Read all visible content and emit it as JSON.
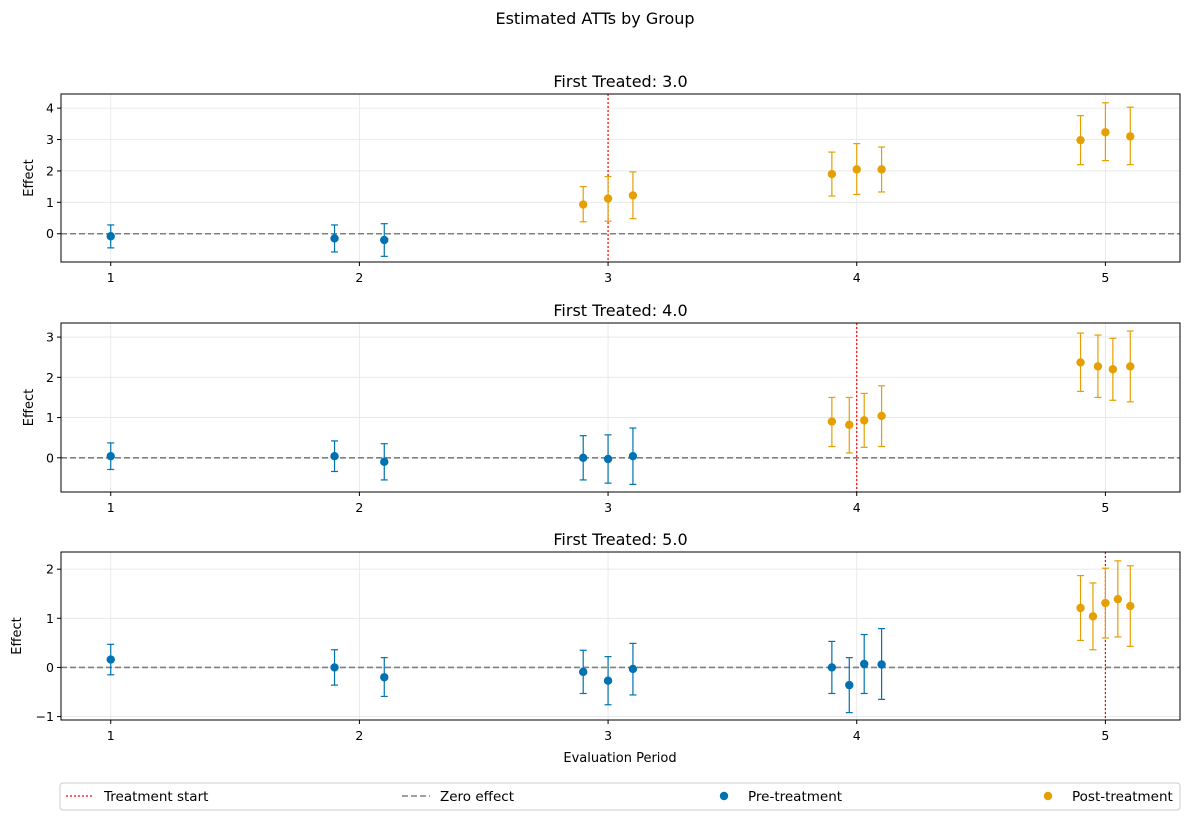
{
  "figure": {
    "suptitle": "Estimated ATTs by Group",
    "xlabel": "Evaluation Period"
  },
  "colors": {
    "pre": "#0072B2",
    "post": "#E69F00",
    "treatment_line": "#ff0000",
    "zero_line": "#808080",
    "grid": "#e6e6e6"
  },
  "legend": {
    "placement": "bottom",
    "items": [
      {
        "label": "Treatment start",
        "kind": "treatment-line"
      },
      {
        "label": "Zero effect",
        "kind": "zero-line"
      },
      {
        "label": "Pre-treatment",
        "kind": "pre-marker"
      },
      {
        "label": "Post-treatment",
        "kind": "post-marker"
      }
    ]
  },
  "chart_data": [
    {
      "type": "scatter",
      "title": "First Treated: 3.0",
      "ylabel": "Effect",
      "xlabel": "",
      "xlim": [
        0.8,
        5.3
      ],
      "ylim": [
        -0.9,
        4.45
      ],
      "xticks": [
        1,
        2,
        3,
        4,
        5
      ],
      "yticks": [
        0,
        1,
        2,
        3,
        4
      ],
      "grid": true,
      "treatment_start": 3,
      "points": [
        {
          "x": 1.0,
          "y": -0.08,
          "lo": -0.45,
          "hi": 0.28,
          "phase": "pre"
        },
        {
          "x": 1.9,
          "y": -0.15,
          "lo": -0.58,
          "hi": 0.28,
          "phase": "pre"
        },
        {
          "x": 2.1,
          "y": -0.2,
          "lo": -0.72,
          "hi": 0.32,
          "phase": "pre"
        },
        {
          "x": 2.9,
          "y": 0.93,
          "lo": 0.38,
          "hi": 1.5,
          "phase": "post"
        },
        {
          "x": 3.0,
          "y": 1.12,
          "lo": 0.4,
          "hi": 1.82,
          "phase": "post"
        },
        {
          "x": 3.1,
          "y": 1.22,
          "lo": 0.48,
          "hi": 1.97,
          "phase": "post"
        },
        {
          "x": 3.9,
          "y": 1.9,
          "lo": 1.2,
          "hi": 2.6,
          "phase": "post"
        },
        {
          "x": 4.0,
          "y": 2.05,
          "lo": 1.25,
          "hi": 2.87,
          "phase": "post"
        },
        {
          "x": 4.1,
          "y": 2.05,
          "lo": 1.33,
          "hi": 2.76,
          "phase": "post"
        },
        {
          "x": 4.9,
          "y": 2.98,
          "lo": 2.2,
          "hi": 3.76,
          "phase": "post"
        },
        {
          "x": 5.0,
          "y": 3.23,
          "lo": 2.33,
          "hi": 4.17,
          "phase": "post"
        },
        {
          "x": 5.1,
          "y": 3.1,
          "lo": 2.2,
          "hi": 4.03,
          "phase": "post"
        }
      ]
    },
    {
      "type": "scatter",
      "title": "First Treated: 4.0",
      "ylabel": "Effect",
      "xlabel": "",
      "xlim": [
        0.8,
        5.3
      ],
      "ylim": [
        -0.85,
        3.35
      ],
      "xticks": [
        1,
        2,
        3,
        4,
        5
      ],
      "yticks": [
        0,
        1,
        2,
        3
      ],
      "grid": true,
      "treatment_start": 4,
      "points": [
        {
          "x": 1.0,
          "y": 0.04,
          "lo": -0.29,
          "hi": 0.37,
          "phase": "pre"
        },
        {
          "x": 1.9,
          "y": 0.04,
          "lo": -0.34,
          "hi": 0.42,
          "phase": "pre"
        },
        {
          "x": 2.1,
          "y": -0.1,
          "lo": -0.55,
          "hi": 0.35,
          "phase": "pre"
        },
        {
          "x": 2.9,
          "y": 0.0,
          "lo": -0.55,
          "hi": 0.55,
          "phase": "pre"
        },
        {
          "x": 3.0,
          "y": -0.03,
          "lo": -0.63,
          "hi": 0.57,
          "phase": "pre"
        },
        {
          "x": 3.1,
          "y": 0.04,
          "lo": -0.66,
          "hi": 0.74,
          "phase": "pre"
        },
        {
          "x": 3.9,
          "y": 0.9,
          "lo": 0.28,
          "hi": 1.5,
          "phase": "post"
        },
        {
          "x": 3.97,
          "y": 0.82,
          "lo": 0.12,
          "hi": 1.5,
          "phase": "post"
        },
        {
          "x": 4.03,
          "y": 0.93,
          "lo": 0.26,
          "hi": 1.6,
          "phase": "post"
        },
        {
          "x": 4.1,
          "y": 1.04,
          "lo": 0.28,
          "hi": 1.79,
          "phase": "post"
        },
        {
          "x": 4.9,
          "y": 2.37,
          "lo": 1.65,
          "hi": 3.1,
          "phase": "post"
        },
        {
          "x": 4.97,
          "y": 2.27,
          "lo": 1.5,
          "hi": 3.05,
          "phase": "post"
        },
        {
          "x": 5.03,
          "y": 2.2,
          "lo": 1.43,
          "hi": 2.97,
          "phase": "post"
        },
        {
          "x": 5.1,
          "y": 2.27,
          "lo": 1.39,
          "hi": 3.15,
          "phase": "post"
        }
      ]
    },
    {
      "type": "scatter",
      "title": "First Treated: 5.0",
      "ylabel": "Effect",
      "xlabel": "Evaluation Period",
      "xlim": [
        0.8,
        5.3
      ],
      "ylim": [
        -1.07,
        2.35
      ],
      "xticks": [
        1,
        2,
        3,
        4,
        5
      ],
      "yticks": [
        -1,
        0,
        1,
        2
      ],
      "grid": true,
      "treatment_start": 5,
      "points": [
        {
          "x": 1.0,
          "y": 0.16,
          "lo": -0.15,
          "hi": 0.47,
          "phase": "pre"
        },
        {
          "x": 1.9,
          "y": 0.0,
          "lo": -0.36,
          "hi": 0.36,
          "phase": "pre"
        },
        {
          "x": 2.1,
          "y": -0.2,
          "lo": -0.59,
          "hi": 0.2,
          "phase": "pre"
        },
        {
          "x": 2.9,
          "y": -0.09,
          "lo": -0.53,
          "hi": 0.35,
          "phase": "pre"
        },
        {
          "x": 3.0,
          "y": -0.27,
          "lo": -0.76,
          "hi": 0.22,
          "phase": "pre"
        },
        {
          "x": 3.1,
          "y": -0.03,
          "lo": -0.56,
          "hi": 0.49,
          "phase": "pre"
        },
        {
          "x": 3.9,
          "y": 0.0,
          "lo": -0.53,
          "hi": 0.53,
          "phase": "pre"
        },
        {
          "x": 3.97,
          "y": -0.36,
          "lo": -0.92,
          "hi": 0.2,
          "phase": "pre"
        },
        {
          "x": 4.03,
          "y": 0.07,
          "lo": -0.53,
          "hi": 0.67,
          "phase": "pre"
        },
        {
          "x": 4.1,
          "y": 0.06,
          "lo": -0.65,
          "hi": 0.79,
          "phase": "pre"
        },
        {
          "x": 4.9,
          "y": 1.21,
          "lo": 0.55,
          "hi": 1.87,
          "phase": "post"
        },
        {
          "x": 4.95,
          "y": 1.04,
          "lo": 0.36,
          "hi": 1.72,
          "phase": "post"
        },
        {
          "x": 5.0,
          "y": 1.31,
          "lo": 0.6,
          "hi": 2.02,
          "phase": "post"
        },
        {
          "x": 5.05,
          "y": 1.39,
          "lo": 0.62,
          "hi": 2.17,
          "phase": "post"
        },
        {
          "x": 5.1,
          "y": 1.25,
          "lo": 0.43,
          "hi": 2.07,
          "phase": "post"
        }
      ]
    }
  ]
}
